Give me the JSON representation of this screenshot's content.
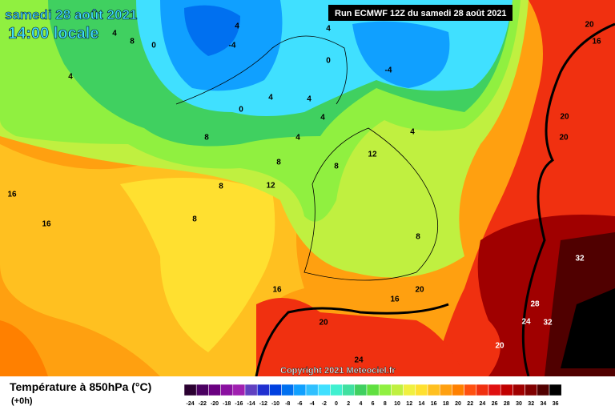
{
  "header": {
    "date": "samedi 28 août 2021",
    "time": "14:00 locale",
    "run": "Run ECMWF 12Z du samedi 28 août 2021"
  },
  "copyright": "Copyright 2021 Meteociel.fr",
  "legend": {
    "title": "Température à 850hPa (°C)",
    "step": "(+0h)",
    "labels": [
      "-24",
      "-22",
      "-20",
      "-18",
      "-16",
      "-14",
      "-12",
      "-10",
      "-8",
      "-6",
      "-4",
      "-2",
      "0",
      "2",
      "4",
      "6",
      "8",
      "10",
      "12",
      "14",
      "16",
      "18",
      "20",
      "22",
      "24",
      "26",
      "28",
      "30",
      "32",
      "34",
      "36"
    ],
    "colors": [
      "#2a0030",
      "#4a0060",
      "#6a0080",
      "#8a10a0",
      "#a020b0",
      "#6040c0",
      "#2030d0",
      "#0040e0",
      "#0070f0",
      "#10a0ff",
      "#30c0ff",
      "#40e0ff",
      "#40f0d0",
      "#40e0a0",
      "#40d060",
      "#60e040",
      "#90f040",
      "#c0f040",
      "#f0f040",
      "#ffe030",
      "#ffc020",
      "#ffa010",
      "#ff8000",
      "#ff5010",
      "#f03010",
      "#e01010",
      "#c00000",
      "#a00000",
      "#800000",
      "#500000",
      "#000000"
    ]
  },
  "contour_labels": [
    "4",
    "4",
    "-4",
    "0",
    "4",
    "8",
    "0",
    "-4",
    "4",
    "4",
    "4",
    "0",
    "4",
    "4",
    "8",
    "4",
    "8",
    "12",
    "8",
    "8",
    "12",
    "16",
    "16",
    "8",
    "8",
    "16",
    "16",
    "20",
    "20",
    "28",
    "24",
    "32",
    "32",
    "20",
    "24",
    "20",
    "20",
    "20",
    "16"
  ]
}
